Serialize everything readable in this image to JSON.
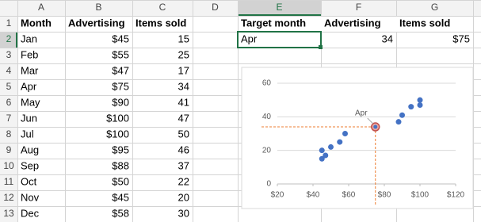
{
  "column_headers": [
    "A",
    "B",
    "C",
    "D",
    "E",
    "F",
    "G"
  ],
  "row_headers": [
    "1",
    "2",
    "3",
    "4",
    "5",
    "6",
    "7",
    "8",
    "9",
    "10",
    "11",
    "12",
    "13"
  ],
  "table": {
    "header": [
      "Month",
      "Advertising",
      "Items sold"
    ],
    "rows": [
      [
        "Jan",
        "$45",
        "15"
      ],
      [
        "Feb",
        "$55",
        "25"
      ],
      [
        "Mar",
        "$47",
        "17"
      ],
      [
        "Apr",
        "$75",
        "34"
      ],
      [
        "May",
        "$90",
        "41"
      ],
      [
        "Jun",
        "$100",
        "47"
      ],
      [
        "Jul",
        "$100",
        "50"
      ],
      [
        "Aug",
        "$95",
        "46"
      ],
      [
        "Sep",
        "$88",
        "37"
      ],
      [
        "Oct",
        "$50",
        "22"
      ],
      [
        "Nov",
        "$45",
        "20"
      ],
      [
        "Dec",
        "$58",
        "30"
      ]
    ]
  },
  "lookup": {
    "header": [
      "Target month",
      "Advertising",
      "Items sold"
    ],
    "row": [
      "Apr",
      "34",
      "$75"
    ]
  },
  "chart_data": {
    "type": "scatter",
    "series": [
      {
        "name": "Items sold",
        "color": "#4472c4",
        "x": [
          45,
          55,
          47,
          75,
          90,
          100,
          100,
          95,
          88,
          50,
          45,
          58
        ],
        "values": [
          15,
          25,
          17,
          34,
          41,
          47,
          50,
          46,
          37,
          22,
          20,
          30
        ]
      }
    ],
    "xlim": [
      20,
      120
    ],
    "xticks": [
      {
        "value": 20,
        "label": "$20"
      },
      {
        "value": 40,
        "label": "$40"
      },
      {
        "value": 60,
        "label": "$60"
      },
      {
        "value": 80,
        "label": "$80"
      },
      {
        "value": 100,
        "label": "$100"
      },
      {
        "value": 120,
        "label": "$120"
      }
    ],
    "ylim": [
      0,
      60
    ],
    "yticks": [
      0,
      20,
      40,
      60
    ],
    "grid": true,
    "highlight": {
      "text": "Apr",
      "x": 75,
      "y": 34,
      "color": "#ed7d31"
    }
  }
}
